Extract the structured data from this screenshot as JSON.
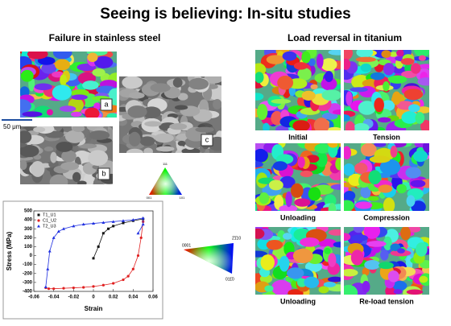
{
  "header": {
    "title": "Seeing is believing: In-situ studies"
  },
  "left": {
    "heading": "Failure in stainless steel",
    "labels": [
      "a",
      "b",
      "c"
    ],
    "scale": "50 μm",
    "triangle": [
      "111",
      "001",
      "101"
    ]
  },
  "right": {
    "heading": "Load reversal in titanium",
    "captions": [
      "Initial",
      "Tension",
      "Unloading",
      "Compression",
      "Unloading",
      "Re-load tension"
    ],
    "triangle": [
      "0001",
      "2̄1̄10",
      "011̄0"
    ]
  },
  "chart_data": {
    "type": "scatter",
    "xlabel": "Strain",
    "ylabel": "Stress (MPa)",
    "xlim": [
      -0.06,
      0.06
    ],
    "xticks": [
      -0.06,
      -0.04,
      -0.02,
      0,
      0.02,
      0.04,
      0.06
    ],
    "ylim": [
      -400,
      500
    ],
    "yticks": [
      -400,
      -300,
      -200,
      -100,
      0,
      100,
      200,
      300,
      400,
      500
    ],
    "series": [
      {
        "name": "T1_U1",
        "color": "#111111",
        "marker": "square",
        "x": [
          0,
          0.005,
          0.01,
          0.015,
          0.02,
          0.03,
          0.04,
          0.05
        ],
        "values": [
          -30,
          100,
          250,
          300,
          330,
          365,
          390,
          410
        ]
      },
      {
        "name": "C1_U2",
        "color": "#e02020",
        "marker": "circle",
        "x": [
          0.05,
          0.048,
          0.045,
          0.04,
          0.035,
          0.03,
          0.02,
          0.01,
          0,
          -0.01,
          -0.02,
          -0.03,
          -0.04,
          -0.045,
          -0.048
        ],
        "values": [
          380,
          200,
          0,
          -150,
          -230,
          -270,
          -310,
          -330,
          -345,
          -355,
          -360,
          -365,
          -370,
          -370,
          -360
        ]
      },
      {
        "name": "T2_U3",
        "color": "#1f2fe0",
        "marker": "triangle",
        "x": [
          -0.048,
          -0.046,
          -0.044,
          -0.04,
          -0.035,
          -0.03,
          -0.02,
          -0.01,
          0,
          0.01,
          0.02,
          0.03,
          0.04,
          0.05,
          0.05,
          0.045
        ],
        "values": [
          -350,
          -150,
          50,
          200,
          270,
          300,
          330,
          350,
          360,
          370,
          380,
          390,
          400,
          420,
          350,
          250
        ]
      }
    ]
  }
}
